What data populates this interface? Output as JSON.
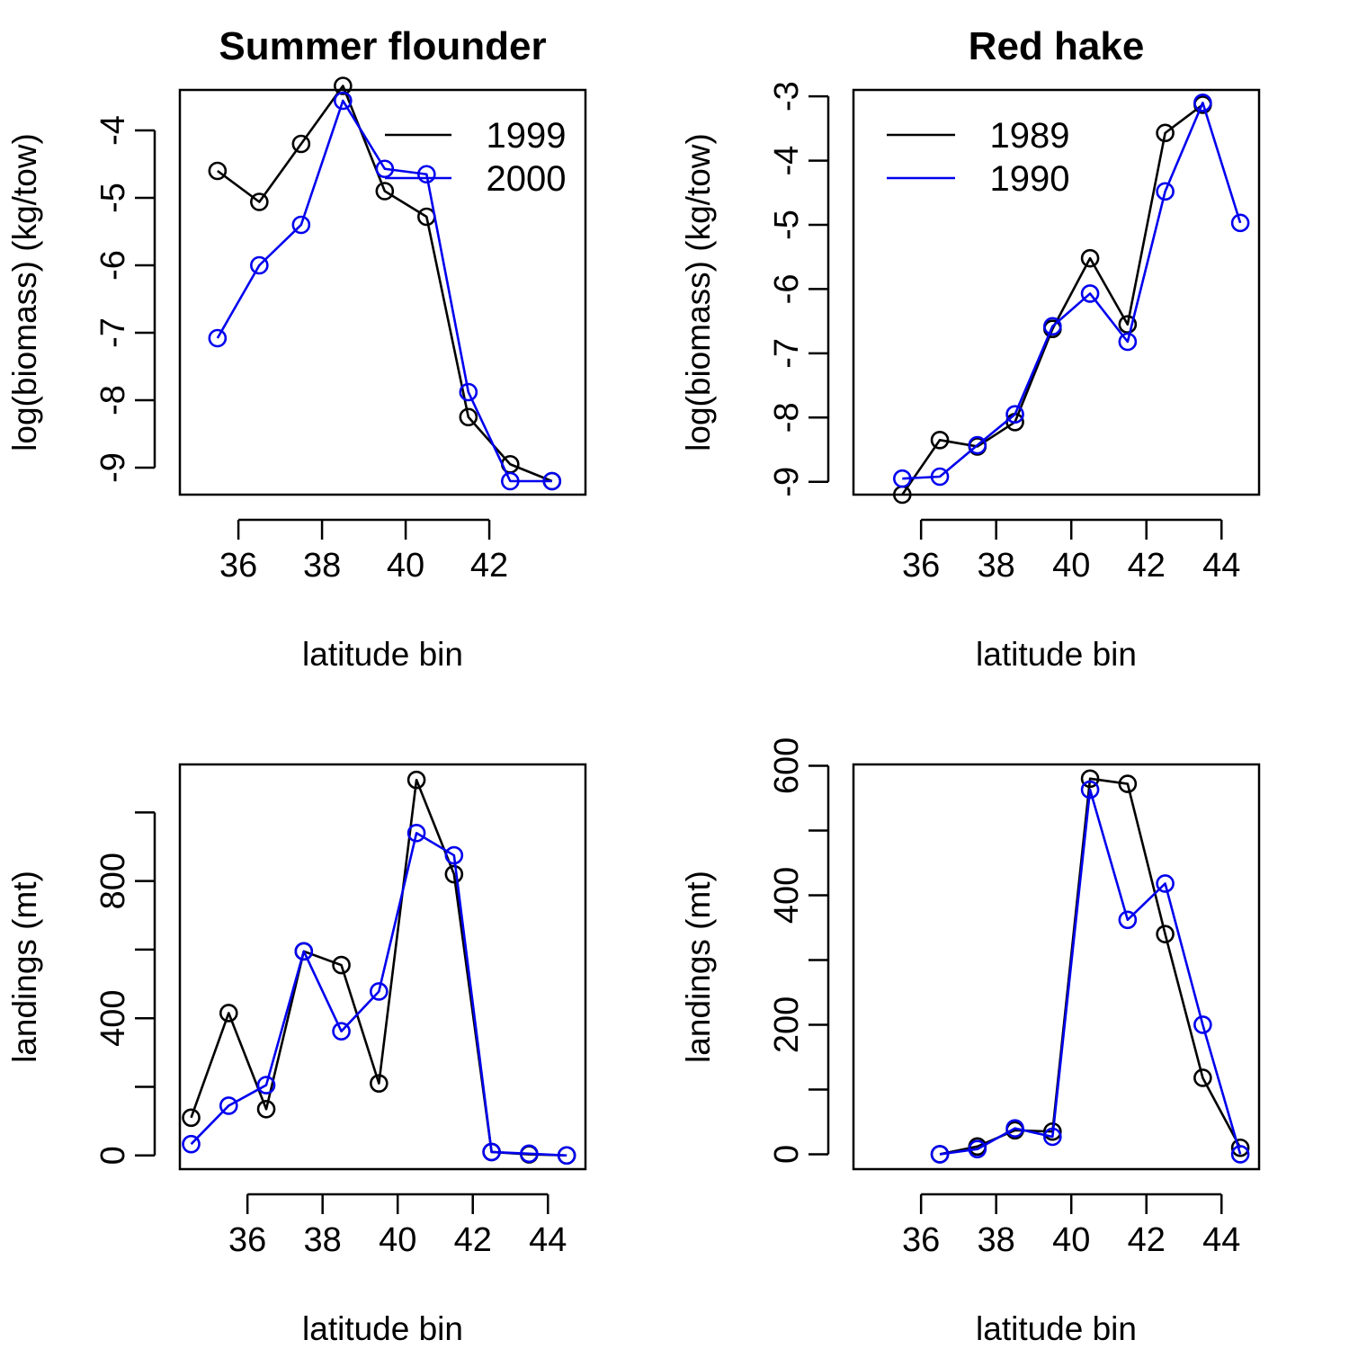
{
  "chart_data": [
    {
      "type": "line",
      "title": "Summer flounder",
      "xlabel": "latitude bin",
      "ylabel": "log(biomass) (kg/tow)",
      "xlim": [
        34.6,
        44.3
      ],
      "ylim": [
        -9.4,
        -3.4
      ],
      "xticks": [
        36,
        38,
        40,
        42
      ],
      "yticks": [
        -9,
        -8,
        -7,
        -6,
        -5,
        -4
      ],
      "legend": {
        "position": "top-right",
        "entries": [
          "1999",
          "2000"
        ]
      },
      "series": [
        {
          "name": "1999",
          "color": "#000000",
          "x": [
            35.5,
            36.5,
            37.5,
            38.5,
            39.5,
            40.5,
            41.5,
            42.5,
            43.5
          ],
          "y": [
            -4.6,
            -5.06,
            -4.2,
            -3.34,
            -4.9,
            -5.28,
            -8.25,
            -8.95,
            -9.2
          ]
        },
        {
          "name": "2000",
          "color": "#0000ee",
          "x": [
            35.5,
            36.5,
            37.5,
            38.5,
            39.5,
            40.5,
            41.5,
            42.5,
            43.5
          ],
          "y": [
            -7.08,
            -6.0,
            -5.4,
            -3.56,
            -4.57,
            -4.65,
            -7.88,
            -9.2,
            -9.2
          ]
        }
      ]
    },
    {
      "type": "line",
      "title": "Red hake",
      "xlabel": "latitude bin",
      "ylabel": "log(biomass) (kg/tow)",
      "xlim": [
        34.2,
        45.0
      ],
      "ylim": [
        -9.2,
        -2.9
      ],
      "xticks": [
        36,
        38,
        40,
        42,
        44
      ],
      "yticks": [
        -9,
        -8,
        -7,
        -6,
        -5,
        -4,
        -3
      ],
      "legend": {
        "position": "top-left",
        "entries": [
          "1989",
          "1990"
        ]
      },
      "series": [
        {
          "name": "1989",
          "color": "#000000",
          "x": [
            35.5,
            36.5,
            37.5,
            38.5,
            39.5,
            40.5,
            41.5,
            42.5,
            43.5
          ],
          "y": [
            -9.2,
            -8.35,
            -8.45,
            -8.07,
            -6.62,
            -5.52,
            -6.55,
            -3.57,
            -3.13
          ]
        },
        {
          "name": "1990",
          "color": "#0000ee",
          "x": [
            35.5,
            36.5,
            37.5,
            38.5,
            39.5,
            40.5,
            41.5,
            42.5,
            43.5,
            44.5
          ],
          "y": [
            -8.95,
            -8.92,
            -8.43,
            -7.95,
            -6.58,
            -6.07,
            -6.82,
            -4.48,
            -3.1,
            -4.97
          ]
        }
      ]
    },
    {
      "type": "line",
      "title": "",
      "xlabel": "latitude bin",
      "ylabel": "landings (mt)",
      "xlim": [
        34.2,
        45.0
      ],
      "ylim": [
        -40,
        1140
      ],
      "xticks": [
        36,
        38,
        40,
        42,
        44
      ],
      "yticks": [
        0,
        200,
        400,
        600,
        800,
        1000
      ],
      "ytick_labels": [
        "0",
        "",
        "400",
        "",
        "800",
        ""
      ],
      "series": [
        {
          "name": "",
          "color": "#000000",
          "x": [
            34.5,
            35.5,
            36.5,
            37.5,
            38.5,
            39.5,
            40.5,
            41.5,
            42.5,
            43.5,
            44.5
          ],
          "y": [
            110,
            415,
            135,
            595,
            555,
            210,
            1095,
            820,
            10,
            3,
            0
          ]
        },
        {
          "name": "",
          "color": "#0000ee",
          "x": [
            34.5,
            35.5,
            36.5,
            37.5,
            38.5,
            39.5,
            40.5,
            41.5,
            42.5,
            43.5,
            44.5
          ],
          "y": [
            33,
            145,
            205,
            595,
            362,
            478,
            940,
            875,
            10,
            5,
            0
          ]
        }
      ]
    },
    {
      "type": "line",
      "title": "",
      "xlabel": "latitude bin",
      "ylabel": "landings (mt)",
      "xlim": [
        34.2,
        45.0
      ],
      "ylim": [
        -23,
        602
      ],
      "xticks": [
        36,
        38,
        40,
        42,
        44
      ],
      "yticks": [
        0,
        100,
        200,
        300,
        400,
        500,
        600
      ],
      "ytick_labels": [
        "0",
        "",
        "200",
        "",
        "400",
        "",
        "600"
      ],
      "series": [
        {
          "name": "",
          "color": "#000000",
          "x": [
            36.5,
            37.5,
            38.5,
            39.5,
            40.5,
            41.5,
            42.5,
            43.5,
            44.5
          ],
          "y": [
            0,
            12,
            37,
            35,
            580,
            572,
            340,
            118,
            10
          ]
        },
        {
          "name": "",
          "color": "#0000ee",
          "x": [
            36.5,
            37.5,
            38.5,
            39.5,
            40.5,
            41.5,
            42.5,
            43.5,
            44.5
          ],
          "y": [
            0,
            8,
            40,
            27,
            563,
            362,
            418,
            200,
            0
          ]
        }
      ]
    }
  ]
}
